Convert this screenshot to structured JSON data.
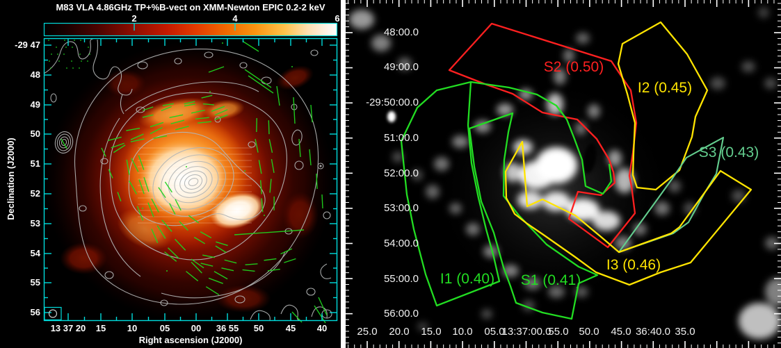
{
  "figure": {
    "left": {
      "title": "M83 VLA 4.86GHz TP+%B-vect on XMM-Newton EPIC 0.2-2 keV",
      "colorbar_ticks": [
        "2",
        "4",
        "6"
      ],
      "x_label": "Right ascension (J2000)",
      "y_label": "Declination (J2000)",
      "x_ticks": [
        "13 37 20",
        "15",
        "10",
        "05",
        "00",
        "36 55",
        "50",
        "45",
        "40"
      ],
      "y_ticks": [
        "-29 47",
        "48",
        "49",
        "50",
        "51",
        "52",
        "53",
        "54",
        "55",
        "56"
      ]
    },
    "right": {
      "x_ticks": [
        "25.0",
        "20.0",
        "15.0",
        "10.0",
        "05.0",
        "13:37:00.0",
        "55.0",
        "50.0",
        "45.0",
        "36:40.0",
        "35.0"
      ],
      "y_ticks": [
        "48:00.0",
        "49:00.0",
        "-29:50:00.0",
        "51:00.0",
        "52:00.0",
        "53:00.0",
        "54:00.0",
        "55:00.0",
        "56:00.0"
      ],
      "regions": [
        {
          "id": "S2",
          "value": "0.50",
          "label": "S2 (0.50)",
          "color": "#ff2020"
        },
        {
          "id": "I2",
          "value": "0.45",
          "label": "I2 (0.45)",
          "color": "#ffe400"
        },
        {
          "id": "S3",
          "value": "0.43",
          "label": "S3 (0.43)",
          "color": "#63cd8e"
        },
        {
          "id": "I1",
          "value": "0.40",
          "label": "I1 (0.40)",
          "color": "#22dd22"
        },
        {
          "id": "S1",
          "value": "0.41",
          "label": "S1 (0.41)",
          "color": "#22dd22"
        },
        {
          "id": "I3",
          "value": "0.46",
          "label": "I3 (0.46)",
          "color": "#ffe400"
        }
      ]
    },
    "colors": {
      "frame": "#00dcdc",
      "contour": "#b3b6b6",
      "vector": "#1fd31f"
    }
  }
}
